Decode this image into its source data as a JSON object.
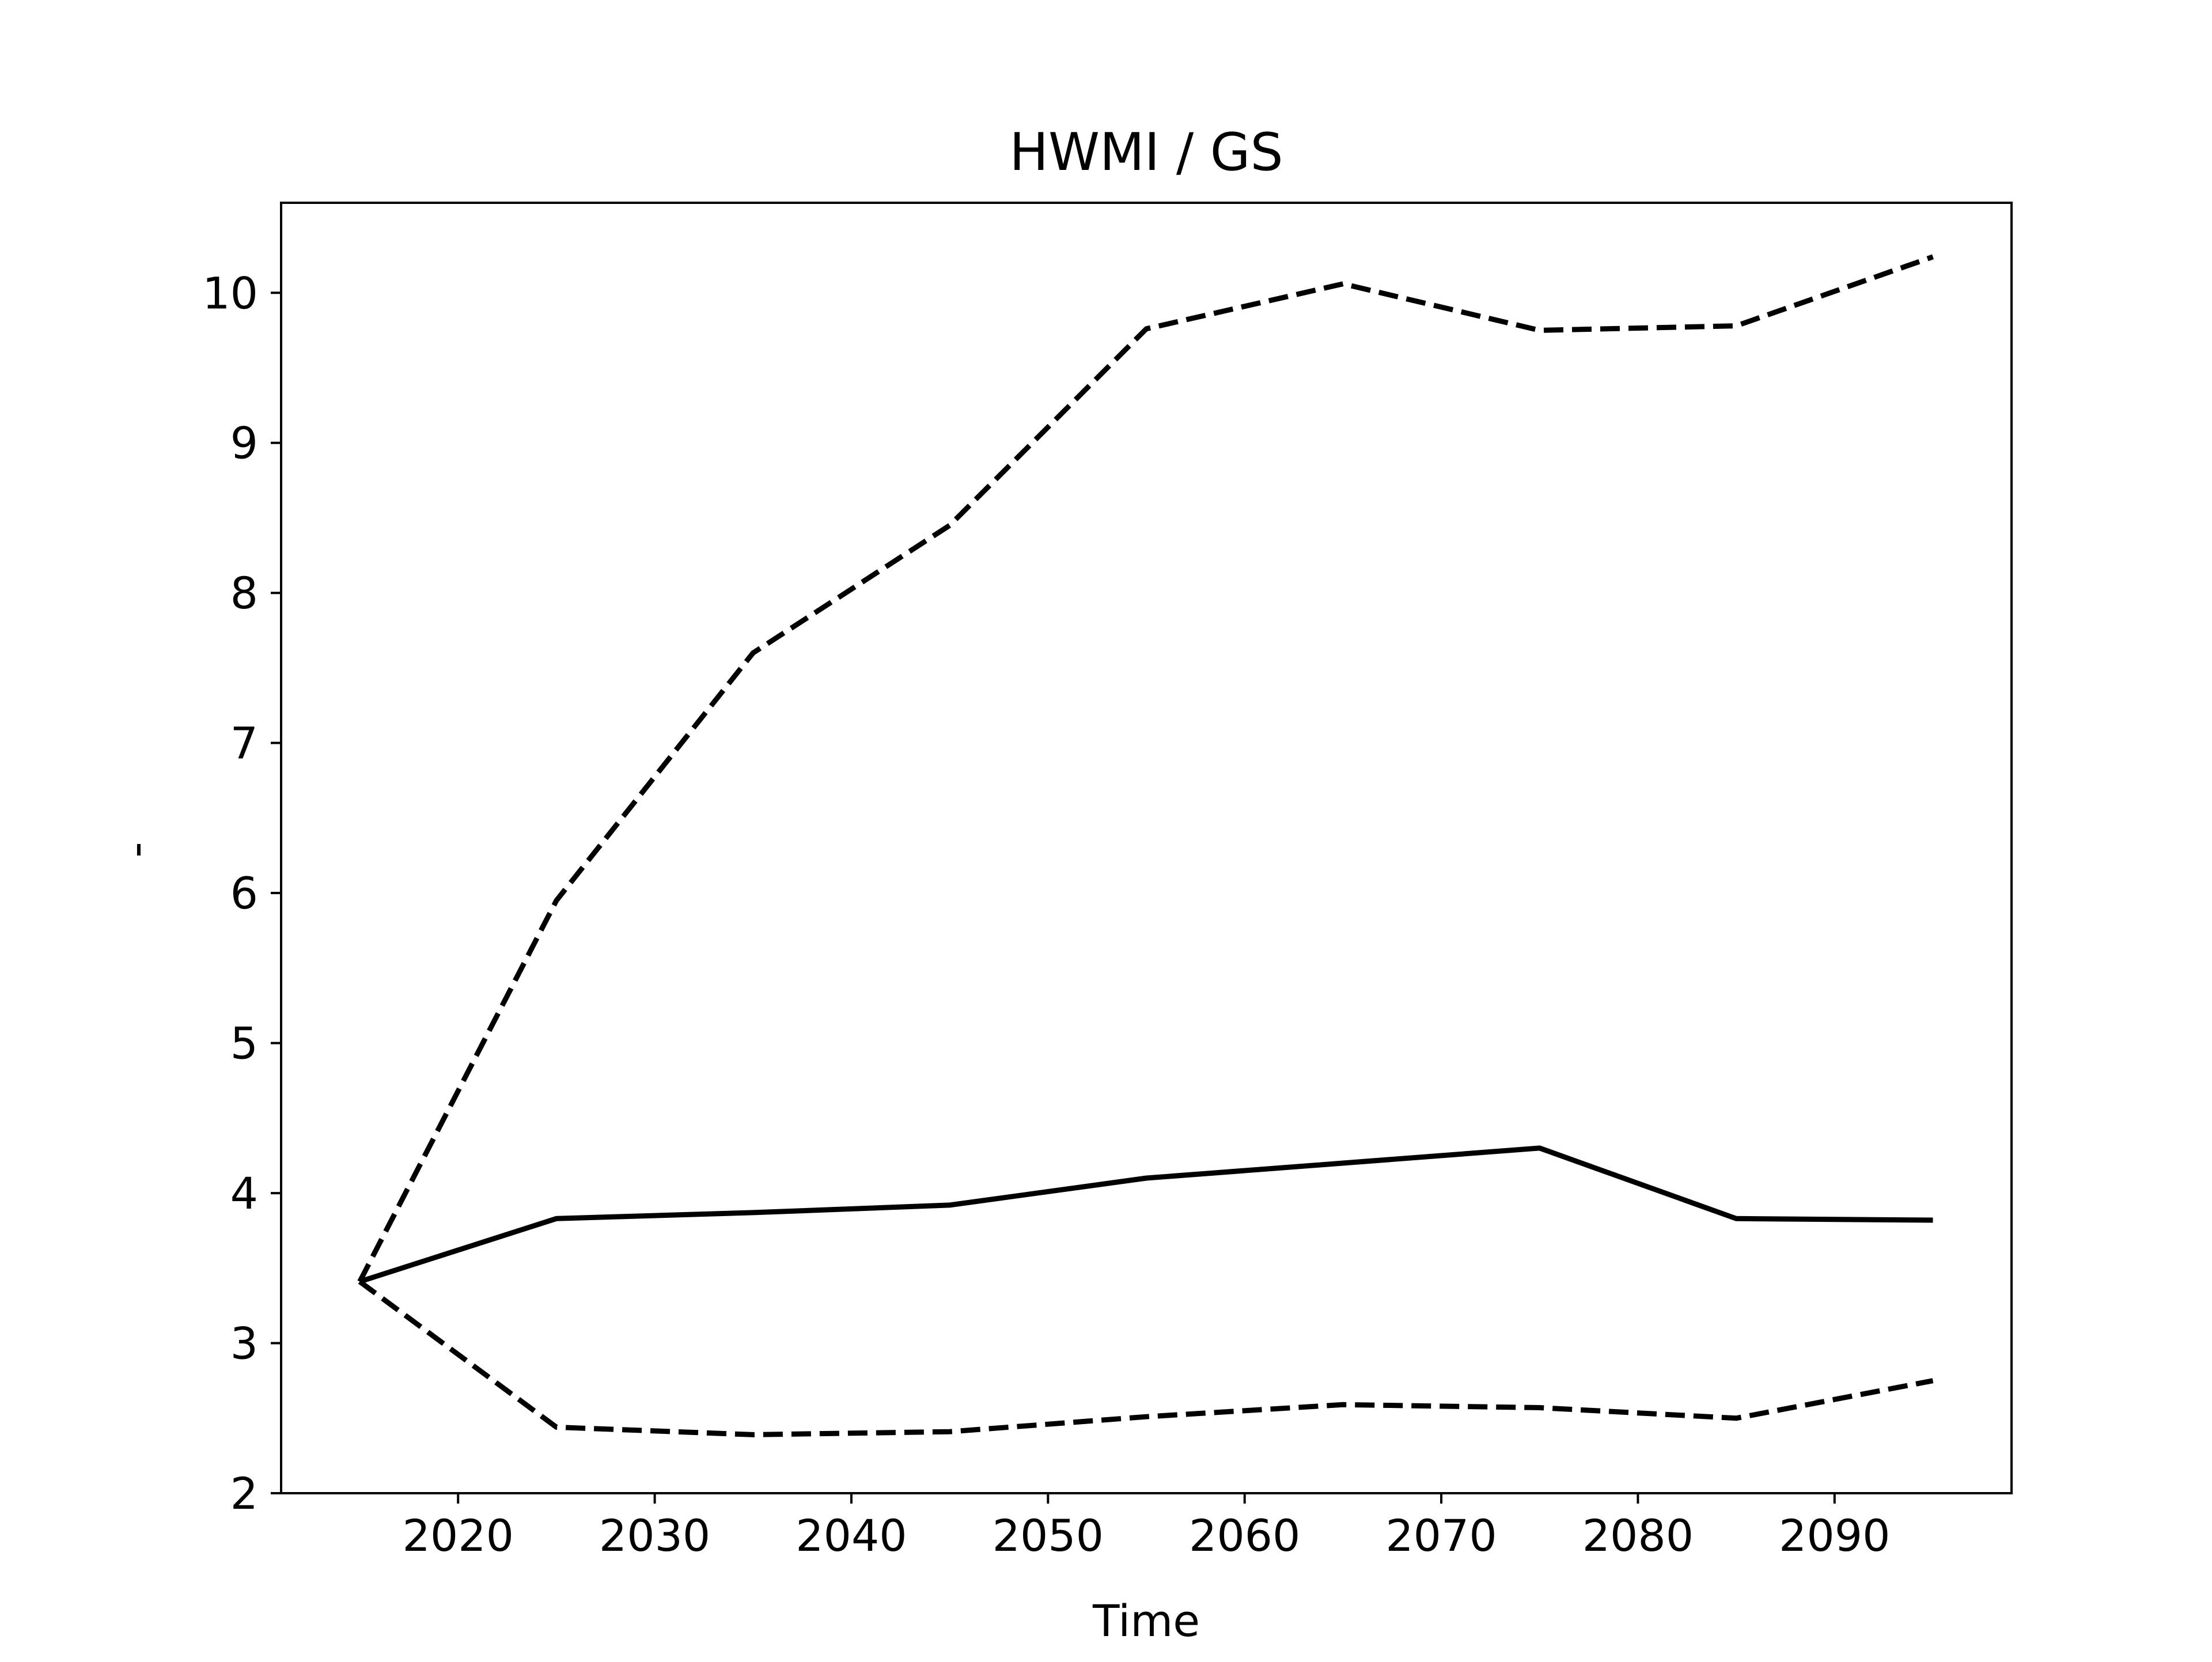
{
  "chart_data": {
    "type": "line",
    "title": "HWMI / GS",
    "xlabel": "Time",
    "ylabel": "-",
    "xlim": [
      2011,
      2099
    ],
    "ylim": [
      2,
      10.6
    ],
    "x_ticks": [
      2020,
      2030,
      2040,
      2050,
      2060,
      2070,
      2080,
      2090
    ],
    "y_ticks": [
      2,
      3,
      4,
      5,
      6,
      7,
      8,
      9,
      10
    ],
    "grid": false,
    "legend": "none",
    "x": [
      2015,
      2025,
      2035,
      2045,
      2055,
      2065,
      2075,
      2085,
      2095
    ],
    "series": [
      {
        "style": "solid",
        "color": "#000000",
        "values": [
          3.41,
          3.83,
          3.87,
          3.92,
          4.1,
          4.2,
          4.3,
          3.83,
          3.82
        ]
      },
      {
        "style": "dashed",
        "color": "#000000",
        "values": [
          3.41,
          5.95,
          7.6,
          8.45,
          9.76,
          10.06,
          9.75,
          9.78,
          10.24
        ]
      },
      {
        "style": "dashed",
        "color": "#000000",
        "values": [
          3.41,
          2.44,
          2.39,
          2.41,
          2.51,
          2.59,
          2.57,
          2.5,
          2.75
        ]
      }
    ]
  }
}
